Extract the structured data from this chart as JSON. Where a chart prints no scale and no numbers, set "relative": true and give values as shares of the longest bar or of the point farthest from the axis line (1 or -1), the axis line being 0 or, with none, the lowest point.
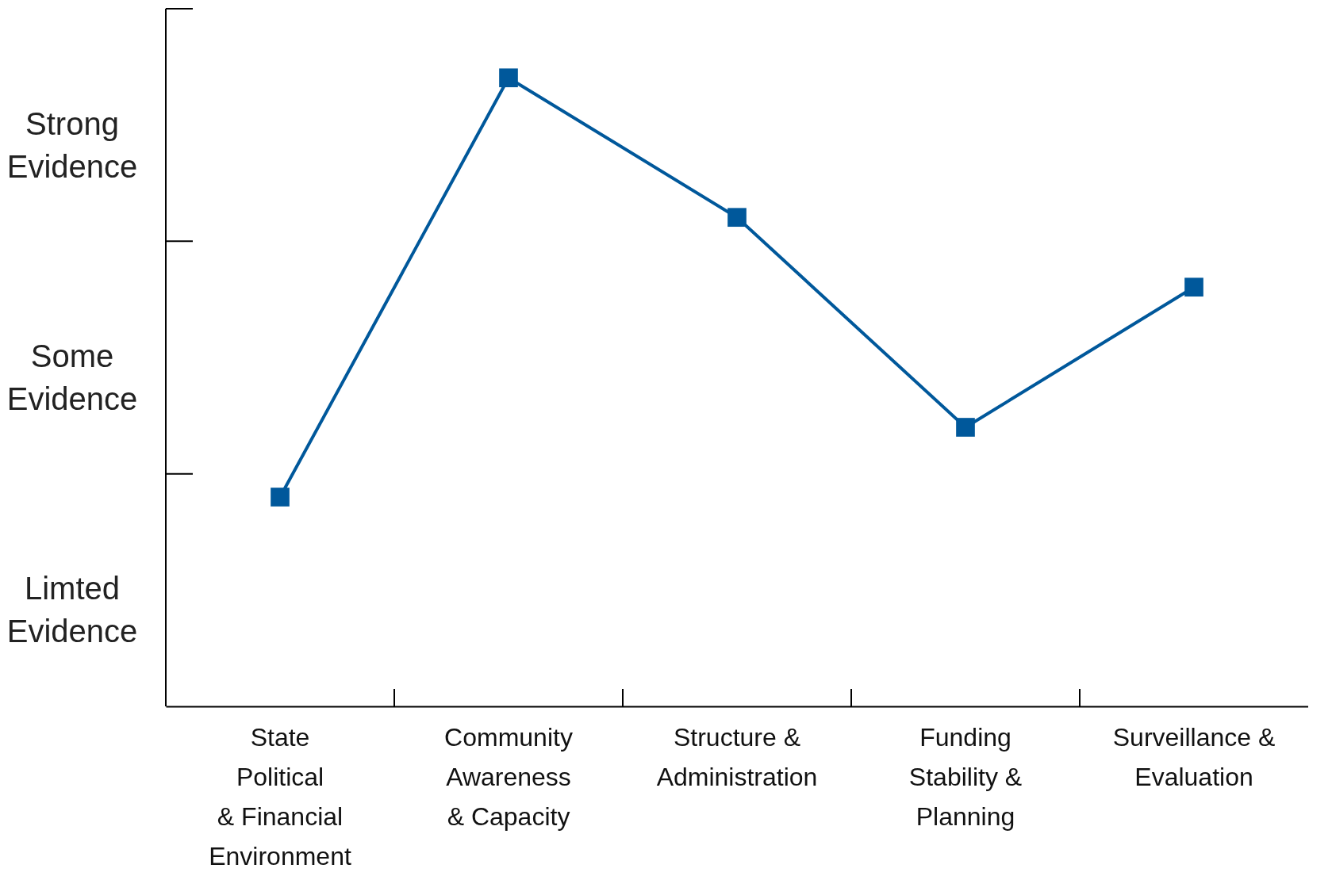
{
  "chart_data": {
    "type": "line",
    "relative": true,
    "categories": [
      "State\nPolitical\n& Financial\nEnvironment",
      "Community\nAwareness\n& Capacity",
      "Structure &\nAdministration",
      "Funding\nStability &\nPlanning",
      "Surveillance &\nEvaluation"
    ],
    "series": [
      {
        "color": "#00589b",
        "values": [
          0.333,
          1,
          0.778,
          0.444,
          0.667
        ]
      }
    ],
    "annotations": [
      "Strong\nEvidence",
      "Some\nEvidence",
      "Limted\nEvidence"
    ],
    "marker": "square",
    "line_style": "solid",
    "grid": false,
    "legend": false
  }
}
